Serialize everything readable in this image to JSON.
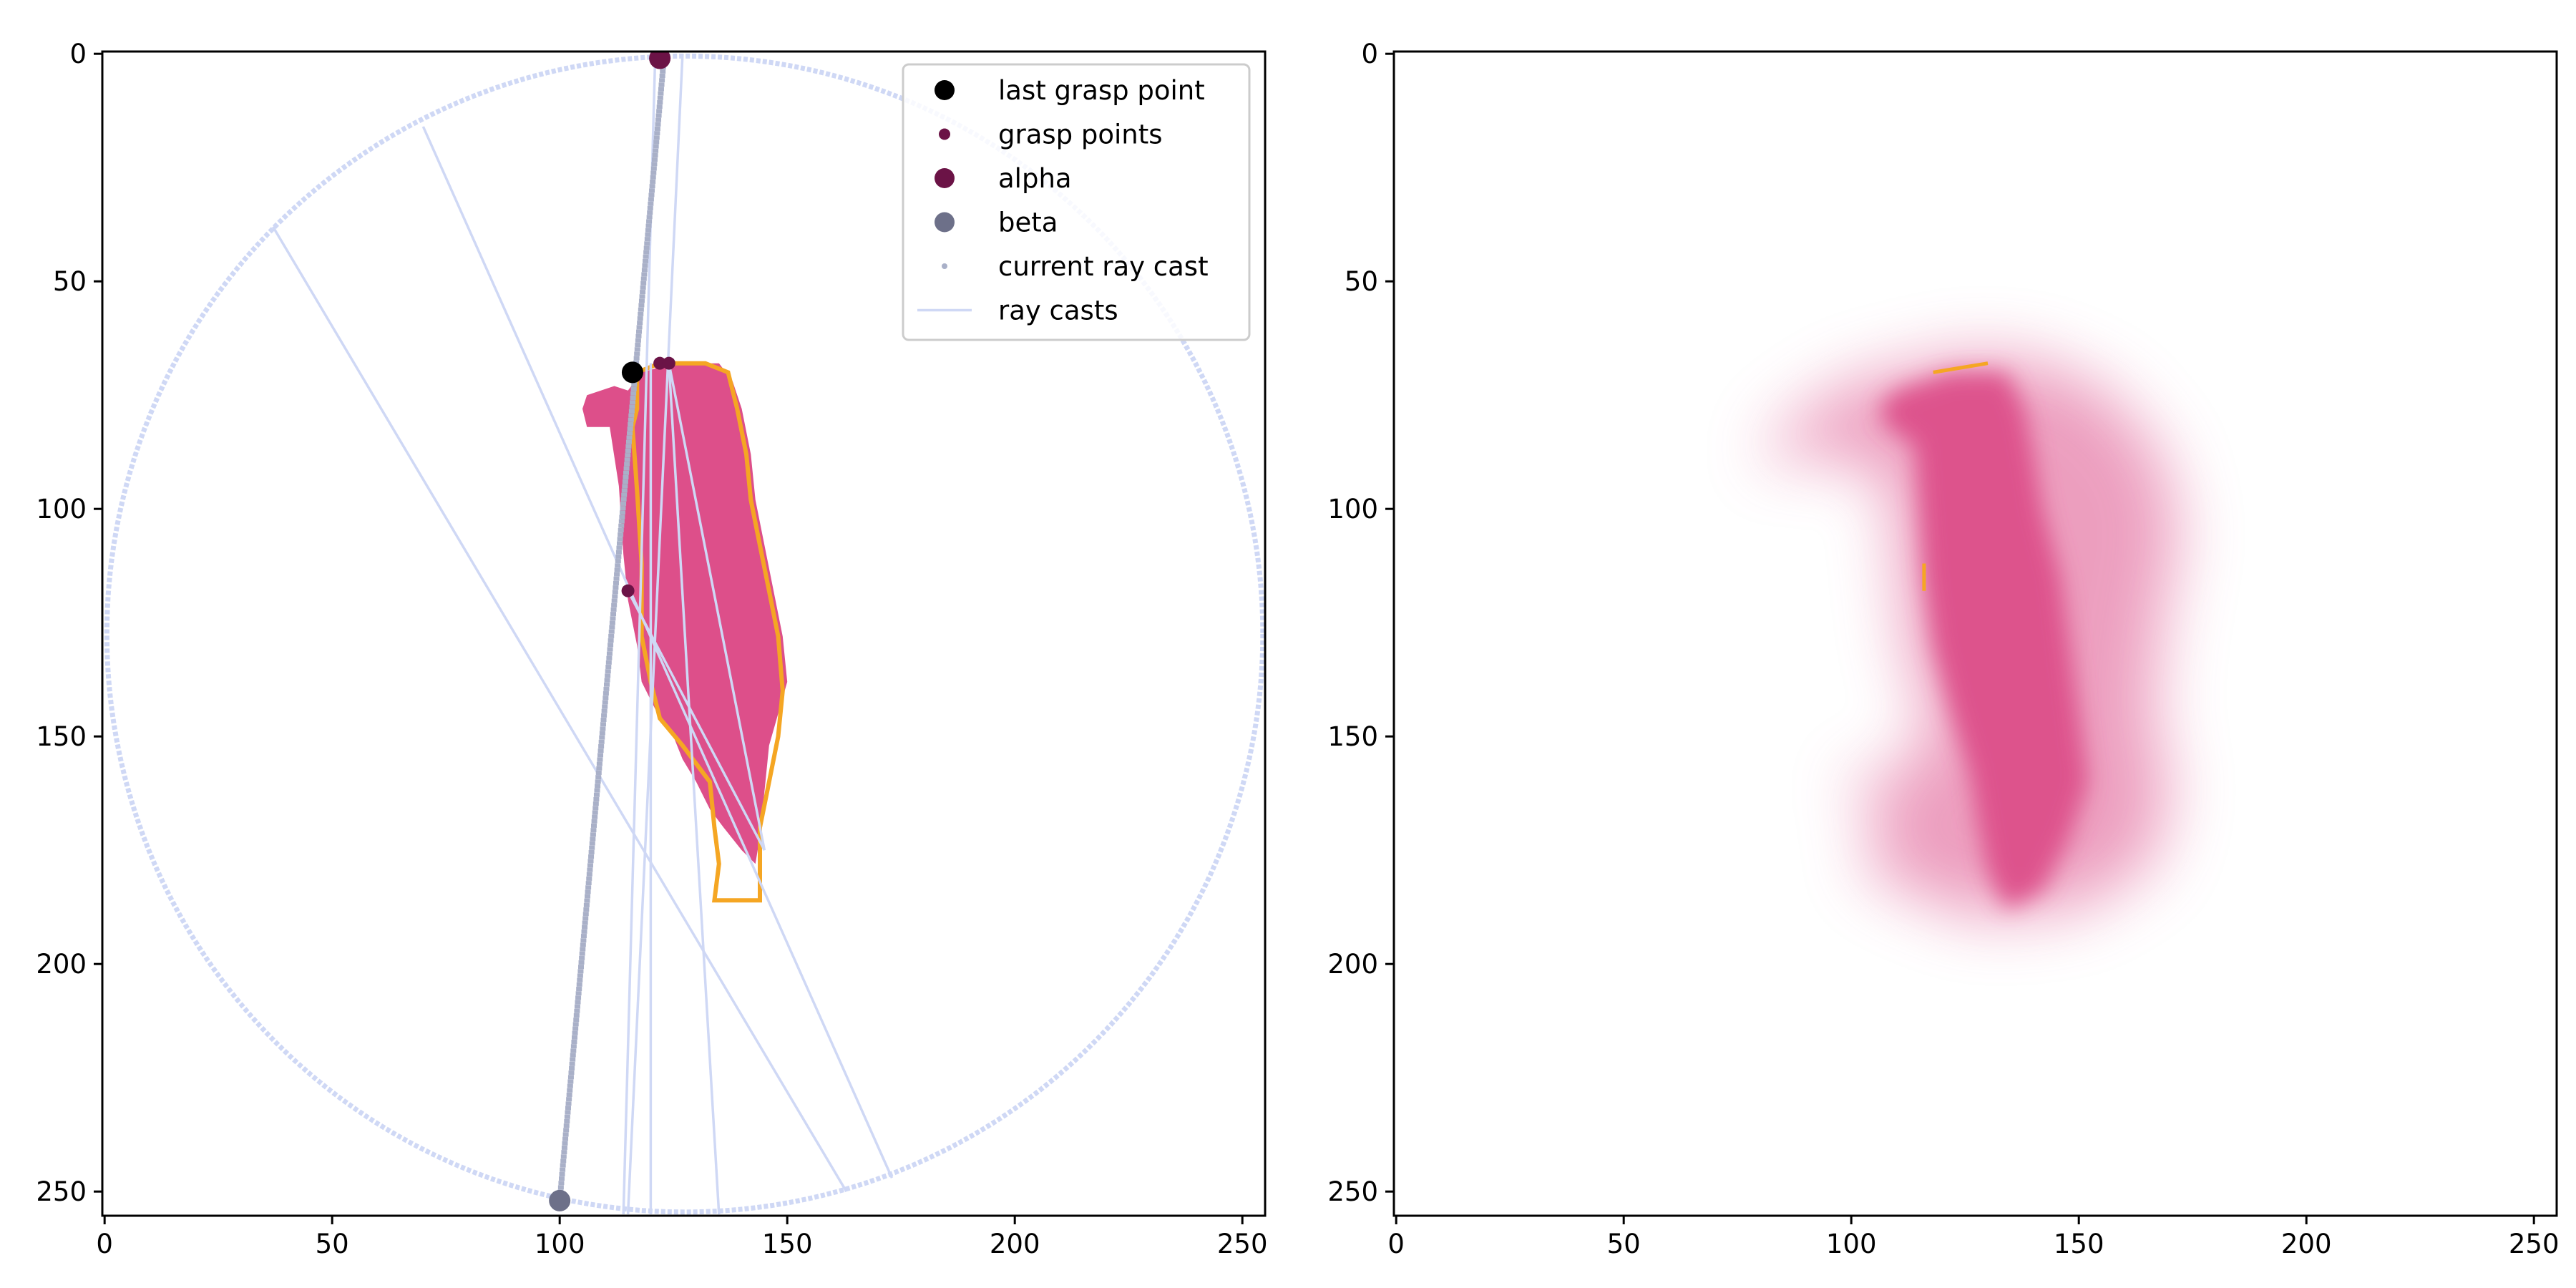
{
  "colors": {
    "object": "#dd4f8a",
    "outline": "#f5a623",
    "ray": "#cfd8f5",
    "current_ray": "#a9b0c8",
    "alpha": "#6b1346",
    "beta": "#6d7089",
    "last_grasp": "#000000",
    "frame": "#000000"
  },
  "chart_data": [
    {
      "type": "scatter",
      "image_extent": [
        0,
        255
      ],
      "y_inverted": true,
      "xticks": [
        0,
        50,
        100,
        150,
        200,
        250
      ],
      "yticks": [
        0,
        50,
        100,
        150,
        200,
        250
      ],
      "xlim": [
        0,
        255
      ],
      "ylim": [
        255,
        0
      ],
      "legend_position": "upper-right",
      "legend": [
        {
          "label": "last grasp point",
          "marker": "large-dot",
          "color": "#000000"
        },
        {
          "label": "grasp points",
          "marker": "small-dot",
          "color": "#6b1346"
        },
        {
          "label": "alpha",
          "marker": "large-dot",
          "color": "#6b1346"
        },
        {
          "label": "beta",
          "marker": "large-dot",
          "color": "#6d7089"
        },
        {
          "label": "current ray cast",
          "marker": "tiny-dot",
          "color": "#a9b0c8"
        },
        {
          "label": "ray casts",
          "marker": "line",
          "color": "#cfd8f5"
        }
      ],
      "circle": {
        "cx": 127.5,
        "cy": 127.5,
        "r": 127
      },
      "object_polygon": [
        [
          115,
          74
        ],
        [
          112,
          73
        ],
        [
          106,
          75
        ],
        [
          105,
          78
        ],
        [
          106,
          82
        ],
        [
          111,
          82
        ],
        [
          113,
          95
        ],
        [
          114,
          110
        ],
        [
          115,
          120
        ],
        [
          117,
          130
        ],
        [
          118,
          138
        ],
        [
          121,
          144
        ],
        [
          125,
          150
        ],
        [
          127,
          155
        ],
        [
          130,
          160
        ],
        [
          133,
          166
        ],
        [
          136,
          170
        ],
        [
          140,
          175
        ],
        [
          143,
          178
        ],
        [
          144,
          172
        ],
        [
          145,
          162
        ],
        [
          146,
          152
        ],
        [
          148,
          145
        ],
        [
          150,
          138
        ],
        [
          149,
          128
        ],
        [
          147,
          118
        ],
        [
          145,
          108
        ],
        [
          143,
          98
        ],
        [
          142,
          88
        ],
        [
          140,
          78
        ],
        [
          138,
          72
        ],
        [
          135,
          68
        ],
        [
          125,
          68
        ],
        [
          118,
          70
        ]
      ],
      "outline_polygon": [
        [
          117,
          70
        ],
        [
          117,
          78
        ],
        [
          116,
          82
        ],
        [
          117,
          96
        ],
        [
          118,
          112
        ],
        [
          118,
          128
        ],
        [
          120,
          138
        ],
        [
          122,
          146
        ],
        [
          127,
          152
        ],
        [
          133,
          160
        ],
        [
          134,
          170
        ],
        [
          135,
          178
        ],
        [
          134,
          186
        ],
        [
          144,
          186
        ],
        [
          144,
          170
        ],
        [
          146,
          160
        ],
        [
          148,
          150
        ],
        [
          149,
          140
        ],
        [
          148,
          128
        ],
        [
          146,
          118
        ],
        [
          144,
          108
        ],
        [
          142,
          98
        ],
        [
          141,
          88
        ],
        [
          139,
          78
        ],
        [
          137,
          70
        ],
        [
          132,
          68
        ],
        [
          122,
          68
        ]
      ],
      "ray_casts": [
        [
          [
            121,
            0
          ],
          [
            114,
            255
          ]
        ],
        [
          [
            127,
            0
          ],
          [
            115,
            255
          ]
        ],
        [
          [
            124,
            68
          ],
          [
            135,
            255
          ]
        ],
        [
          [
            124,
            68
          ],
          [
            145,
            175
          ]
        ],
        [
          [
            70,
            16
          ],
          [
            173,
            247
          ]
        ],
        [
          [
            37,
            38
          ],
          [
            163,
            250
          ]
        ],
        [
          [
            120,
            68
          ],
          [
            120,
            255
          ]
        ],
        [
          [
            115,
            118
          ],
          [
            145,
            175
          ]
        ]
      ],
      "current_ray_cast": [
        [
          123,
          0
        ],
        [
          100,
          252
        ]
      ],
      "grasp_points": [
        [
          122,
          68
        ],
        [
          124,
          68
        ],
        [
          115,
          118
        ]
      ],
      "alpha": [
        [
          122,
          1
        ]
      ],
      "beta": [
        [
          100,
          252
        ]
      ],
      "last_grasp_point": [
        [
          116,
          70
        ]
      ]
    },
    {
      "type": "heatmap",
      "image_extent": [
        0,
        255
      ],
      "y_inverted": true,
      "xticks": [
        0,
        50,
        100,
        150,
        200,
        250
      ],
      "yticks": [
        0,
        50,
        100,
        150,
        200,
        250
      ],
      "xlim": [
        0,
        255
      ],
      "ylim": [
        255,
        0
      ],
      "core_polygon": [
        [
          122,
          70
        ],
        [
          110,
          74
        ],
        [
          106,
          78
        ],
        [
          108,
          82
        ],
        [
          114,
          86
        ],
        [
          115,
          100
        ],
        [
          116,
          115
        ],
        [
          118,
          130
        ],
        [
          122,
          145
        ],
        [
          126,
          158
        ],
        [
          128,
          170
        ],
        [
          130,
          180
        ],
        [
          134,
          188
        ],
        [
          142,
          184
        ],
        [
          148,
          172
        ],
        [
          152,
          160
        ],
        [
          150,
          145
        ],
        [
          148,
          130
        ],
        [
          146,
          115
        ],
        [
          142,
          100
        ],
        [
          140,
          88
        ],
        [
          138,
          78
        ],
        [
          134,
          70
        ]
      ],
      "halo_polygon": [
        [
          125,
          66
        ],
        [
          100,
          72
        ],
        [
          85,
          82
        ],
        [
          80,
          90
        ],
        [
          92,
          88
        ],
        [
          108,
          92
        ],
        [
          110,
          110
        ],
        [
          112,
          130
        ],
        [
          118,
          150
        ],
        [
          110,
          158
        ],
        [
          98,
          160
        ],
        [
          108,
          168
        ],
        [
          102,
          178
        ],
        [
          112,
          184
        ],
        [
          128,
          190
        ],
        [
          150,
          188
        ],
        [
          166,
          178
        ],
        [
          170,
          162
        ],
        [
          166,
          145
        ],
        [
          168,
          125
        ],
        [
          172,
          105
        ],
        [
          168,
          88
        ],
        [
          156,
          74
        ],
        [
          140,
          67
        ]
      ]
    }
  ]
}
